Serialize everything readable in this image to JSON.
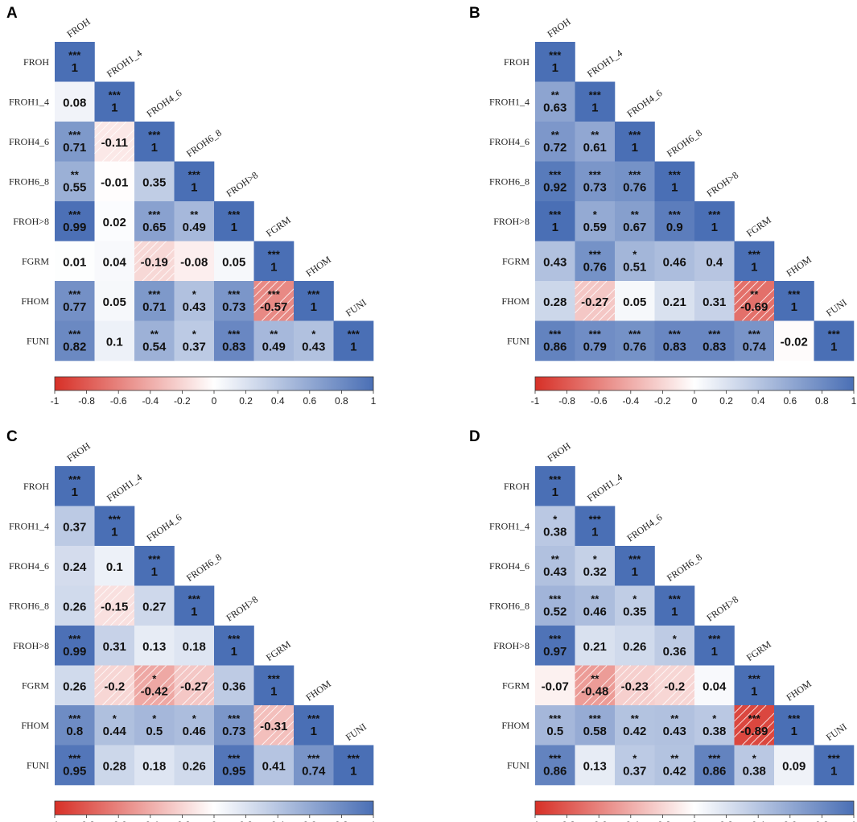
{
  "variables": [
    "FROH",
    "FROH1_4",
    "FROH4_6",
    "FROH6_8",
    "FROH>8",
    "FGRM",
    "FHOM",
    "FUNI"
  ],
  "colorbar": {
    "ticks": [
      "-1",
      "-0.8",
      "-0.6",
      "-0.4",
      "-0.2",
      "0",
      "0.2",
      "0.4",
      "0.6",
      "0.8",
      "1"
    ],
    "color_negative": "#d73027",
    "color_zero": "#ffffff",
    "color_positive": "#4a6fb5"
  },
  "chart_data": [
    {
      "type": "heatmap",
      "panel": "A",
      "labels": [
        "FROH",
        "FROH1_4",
        "FROH4_6",
        "FROH6_8",
        "FROH>8",
        "FGRM",
        "FHOM",
        "FUNI"
      ],
      "value_range": [
        -1,
        1
      ],
      "values": [
        [
          "1"
        ],
        [
          "0.08",
          "1"
        ],
        [
          "0.71",
          "-0.11",
          "1"
        ],
        [
          "0.55",
          "-0.01",
          "0.35",
          "1"
        ],
        [
          "0.99",
          "0.02",
          "0.65",
          "0.49",
          "1"
        ],
        [
          "0.01",
          "0.04",
          "-0.19",
          "-0.08",
          "0.05",
          "1"
        ],
        [
          "0.77",
          "0.05",
          "0.71",
          "0.43",
          "0.73",
          "-0.57",
          "1"
        ],
        [
          "0.82",
          "0.1",
          "0.54",
          "0.37",
          "0.83",
          "0.49",
          "0.43",
          "1"
        ]
      ],
      "stars": [
        [
          "***"
        ],
        [
          "",
          "***"
        ],
        [
          "***",
          "",
          "***"
        ],
        [
          "**",
          "",
          "",
          "***"
        ],
        [
          "***",
          "",
          "***",
          "**",
          "***"
        ],
        [
          "",
          "",
          "",
          "",
          "",
          "***"
        ],
        [
          "***",
          "",
          "***",
          "*",
          "***",
          "***",
          "***"
        ],
        [
          "***",
          "",
          "**",
          "*",
          "***",
          "**",
          "*",
          "***"
        ]
      ]
    },
    {
      "type": "heatmap",
      "panel": "B",
      "labels": [
        "FROH",
        "FROH1_4",
        "FROH4_6",
        "FROH6_8",
        "FROH>8",
        "FGRM",
        "FHOM",
        "FUNI"
      ],
      "value_range": [
        -1,
        1
      ],
      "values": [
        [
          "1"
        ],
        [
          "0.63",
          "1"
        ],
        [
          "0.72",
          "0.61",
          "1"
        ],
        [
          "0.92",
          "0.73",
          "0.76",
          "1"
        ],
        [
          "1",
          "0.59",
          "0.67",
          "0.9",
          "1"
        ],
        [
          "0.43",
          "0.76",
          "0.51",
          "0.46",
          "0.4",
          "1"
        ],
        [
          "0.28",
          "-0.27",
          "0.05",
          "0.21",
          "0.31",
          "-0.69",
          "1"
        ],
        [
          "0.86",
          "0.79",
          "0.76",
          "0.83",
          "0.83",
          "0.74",
          "-0.02",
          "1"
        ]
      ],
      "stars": [
        [
          "***"
        ],
        [
          "**",
          "***"
        ],
        [
          "**",
          "**",
          "***"
        ],
        [
          "***",
          "***",
          "***",
          "***"
        ],
        [
          "***",
          "*",
          "**",
          "***",
          "***"
        ],
        [
          "",
          "***",
          "*",
          "",
          "",
          "***"
        ],
        [
          "",
          "",
          "",
          "",
          "",
          "**",
          "***"
        ],
        [
          "***",
          "***",
          "***",
          "***",
          "***",
          "***",
          "",
          "***"
        ]
      ]
    },
    {
      "type": "heatmap",
      "panel": "C",
      "labels": [
        "FROH",
        "FROH1_4",
        "FROH4_6",
        "FROH6_8",
        "FROH>8",
        "FGRM",
        "FHOM",
        "FUNI"
      ],
      "value_range": [
        -1,
        1
      ],
      "values": [
        [
          "1"
        ],
        [
          "0.37",
          "1"
        ],
        [
          "0.24",
          "0.1",
          "1"
        ],
        [
          "0.26",
          "-0.15",
          "0.27",
          "1"
        ],
        [
          "0.99",
          "0.31",
          "0.13",
          "0.18",
          "1"
        ],
        [
          "0.26",
          "-0.2",
          "-0.42",
          "-0.27",
          "0.36",
          "1"
        ],
        [
          "0.8",
          "0.44",
          "0.5",
          "0.46",
          "0.73",
          "-0.31",
          "1"
        ],
        [
          "0.95",
          "0.28",
          "0.18",
          "0.26",
          "0.95",
          "0.41",
          "0.74",
          "1"
        ]
      ],
      "stars": [
        [
          "***"
        ],
        [
          "",
          "***"
        ],
        [
          "",
          "",
          "***"
        ],
        [
          "",
          "",
          "",
          "***"
        ],
        [
          "***",
          "",
          "",
          "",
          "***"
        ],
        [
          "",
          "",
          "*",
          "",
          "",
          "***"
        ],
        [
          "***",
          "*",
          "*",
          "*",
          "***",
          "",
          "***"
        ],
        [
          "***",
          "",
          "",
          "",
          "***",
          "",
          "***",
          "***"
        ]
      ]
    },
    {
      "type": "heatmap",
      "panel": "D",
      "labels": [
        "FROH",
        "FROH1_4",
        "FROH4_6",
        "FROH6_8",
        "FROH>8",
        "FGRM",
        "FHOM",
        "FUNI"
      ],
      "value_range": [
        -1,
        1
      ],
      "values": [
        [
          "1"
        ],
        [
          "0.38",
          "1"
        ],
        [
          "0.43",
          "0.32",
          "1"
        ],
        [
          "0.52",
          "0.46",
          "0.35",
          "1"
        ],
        [
          "0.97",
          "0.21",
          "0.26",
          "0.36",
          "1"
        ],
        [
          "-0.07",
          "-0.48",
          "-0.23",
          "-0.2",
          "0.04",
          "1"
        ],
        [
          "0.5",
          "0.58",
          "0.42",
          "0.43",
          "0.38",
          "-0.89",
          "1"
        ],
        [
          "0.86",
          "0.13",
          "0.37",
          "0.42",
          "0.86",
          "0.38",
          "0.09",
          "1"
        ]
      ],
      "stars": [
        [
          "***"
        ],
        [
          "*",
          "***"
        ],
        [
          "**",
          "*",
          "***"
        ],
        [
          "***",
          "**",
          "*",
          "***"
        ],
        [
          "***",
          "",
          "",
          "*",
          "***"
        ],
        [
          "",
          "**",
          "",
          "",
          "",
          "***"
        ],
        [
          "***",
          "***",
          "**",
          "**",
          "*",
          "***",
          "***"
        ],
        [
          "***",
          "",
          "*",
          "**",
          "***",
          "*",
          "",
          "***"
        ]
      ]
    }
  ]
}
